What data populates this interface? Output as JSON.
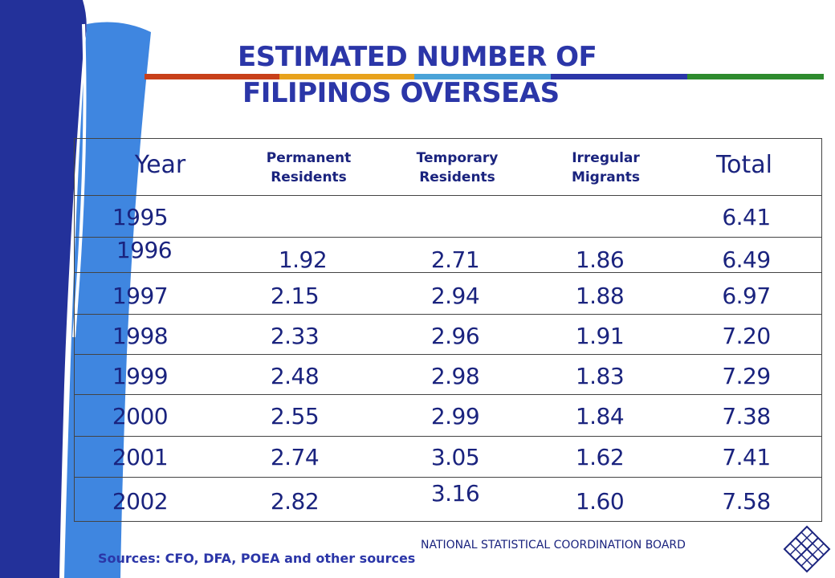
{
  "title": {
    "line1": "ESTIMATED NUMBER OF",
    "line2": "FILIPINOS OVERSEAS"
  },
  "colors": {
    "title": "#2b36a8",
    "text": "#1a237e",
    "rule": [
      "#c8401a",
      "#e8a21c",
      "#4aa3d8",
      "#2b36a8",
      "#2e8b2e"
    ],
    "deco_dark": "#23319a",
    "deco_light": "#3f86e0"
  },
  "table": {
    "headers": {
      "year": "Year",
      "permanent": "Permanent\nResidents",
      "temporary": "Temporary\nResidents",
      "irregular": "Irregular\nMigrants",
      "total": "Total"
    },
    "rows": [
      {
        "year": "1995",
        "permanent": "",
        "temporary": "",
        "irregular": "",
        "total": "6.41"
      },
      {
        "year": "1996",
        "permanent": "1.92",
        "temporary": "2.71",
        "irregular": "1.86",
        "total": "6.49"
      },
      {
        "year": "1997",
        "permanent": "2.15",
        "temporary": "2.94",
        "irregular": "1.88",
        "total": "6.97"
      },
      {
        "year": "1998",
        "permanent": "2.33",
        "temporary": "2.96",
        "irregular": "1.91",
        "total": "7.20"
      },
      {
        "year": "1999",
        "permanent": "2.48",
        "temporary": "2.98",
        "irregular": "1.83",
        "total": "7.29"
      },
      {
        "year": "2000",
        "permanent": "2.55",
        "temporary": "2.99",
        "irregular": "1.84",
        "total": "7.38"
      },
      {
        "year": "2001",
        "permanent": "2.74",
        "temporary": "3.05",
        "irregular": "1.62",
        "total": "7.41"
      },
      {
        "year": "2002",
        "permanent": "2.82",
        "temporary": "3.16",
        "irregular": "1.60",
        "total": "7.58"
      }
    ]
  },
  "source": "Sources: CFO, DFA, POEA and other sources",
  "footer": "NATIONAL STATISTICAL COORDINATION BOARD",
  "logo_icon": "nscb-diamond-logo-icon"
}
